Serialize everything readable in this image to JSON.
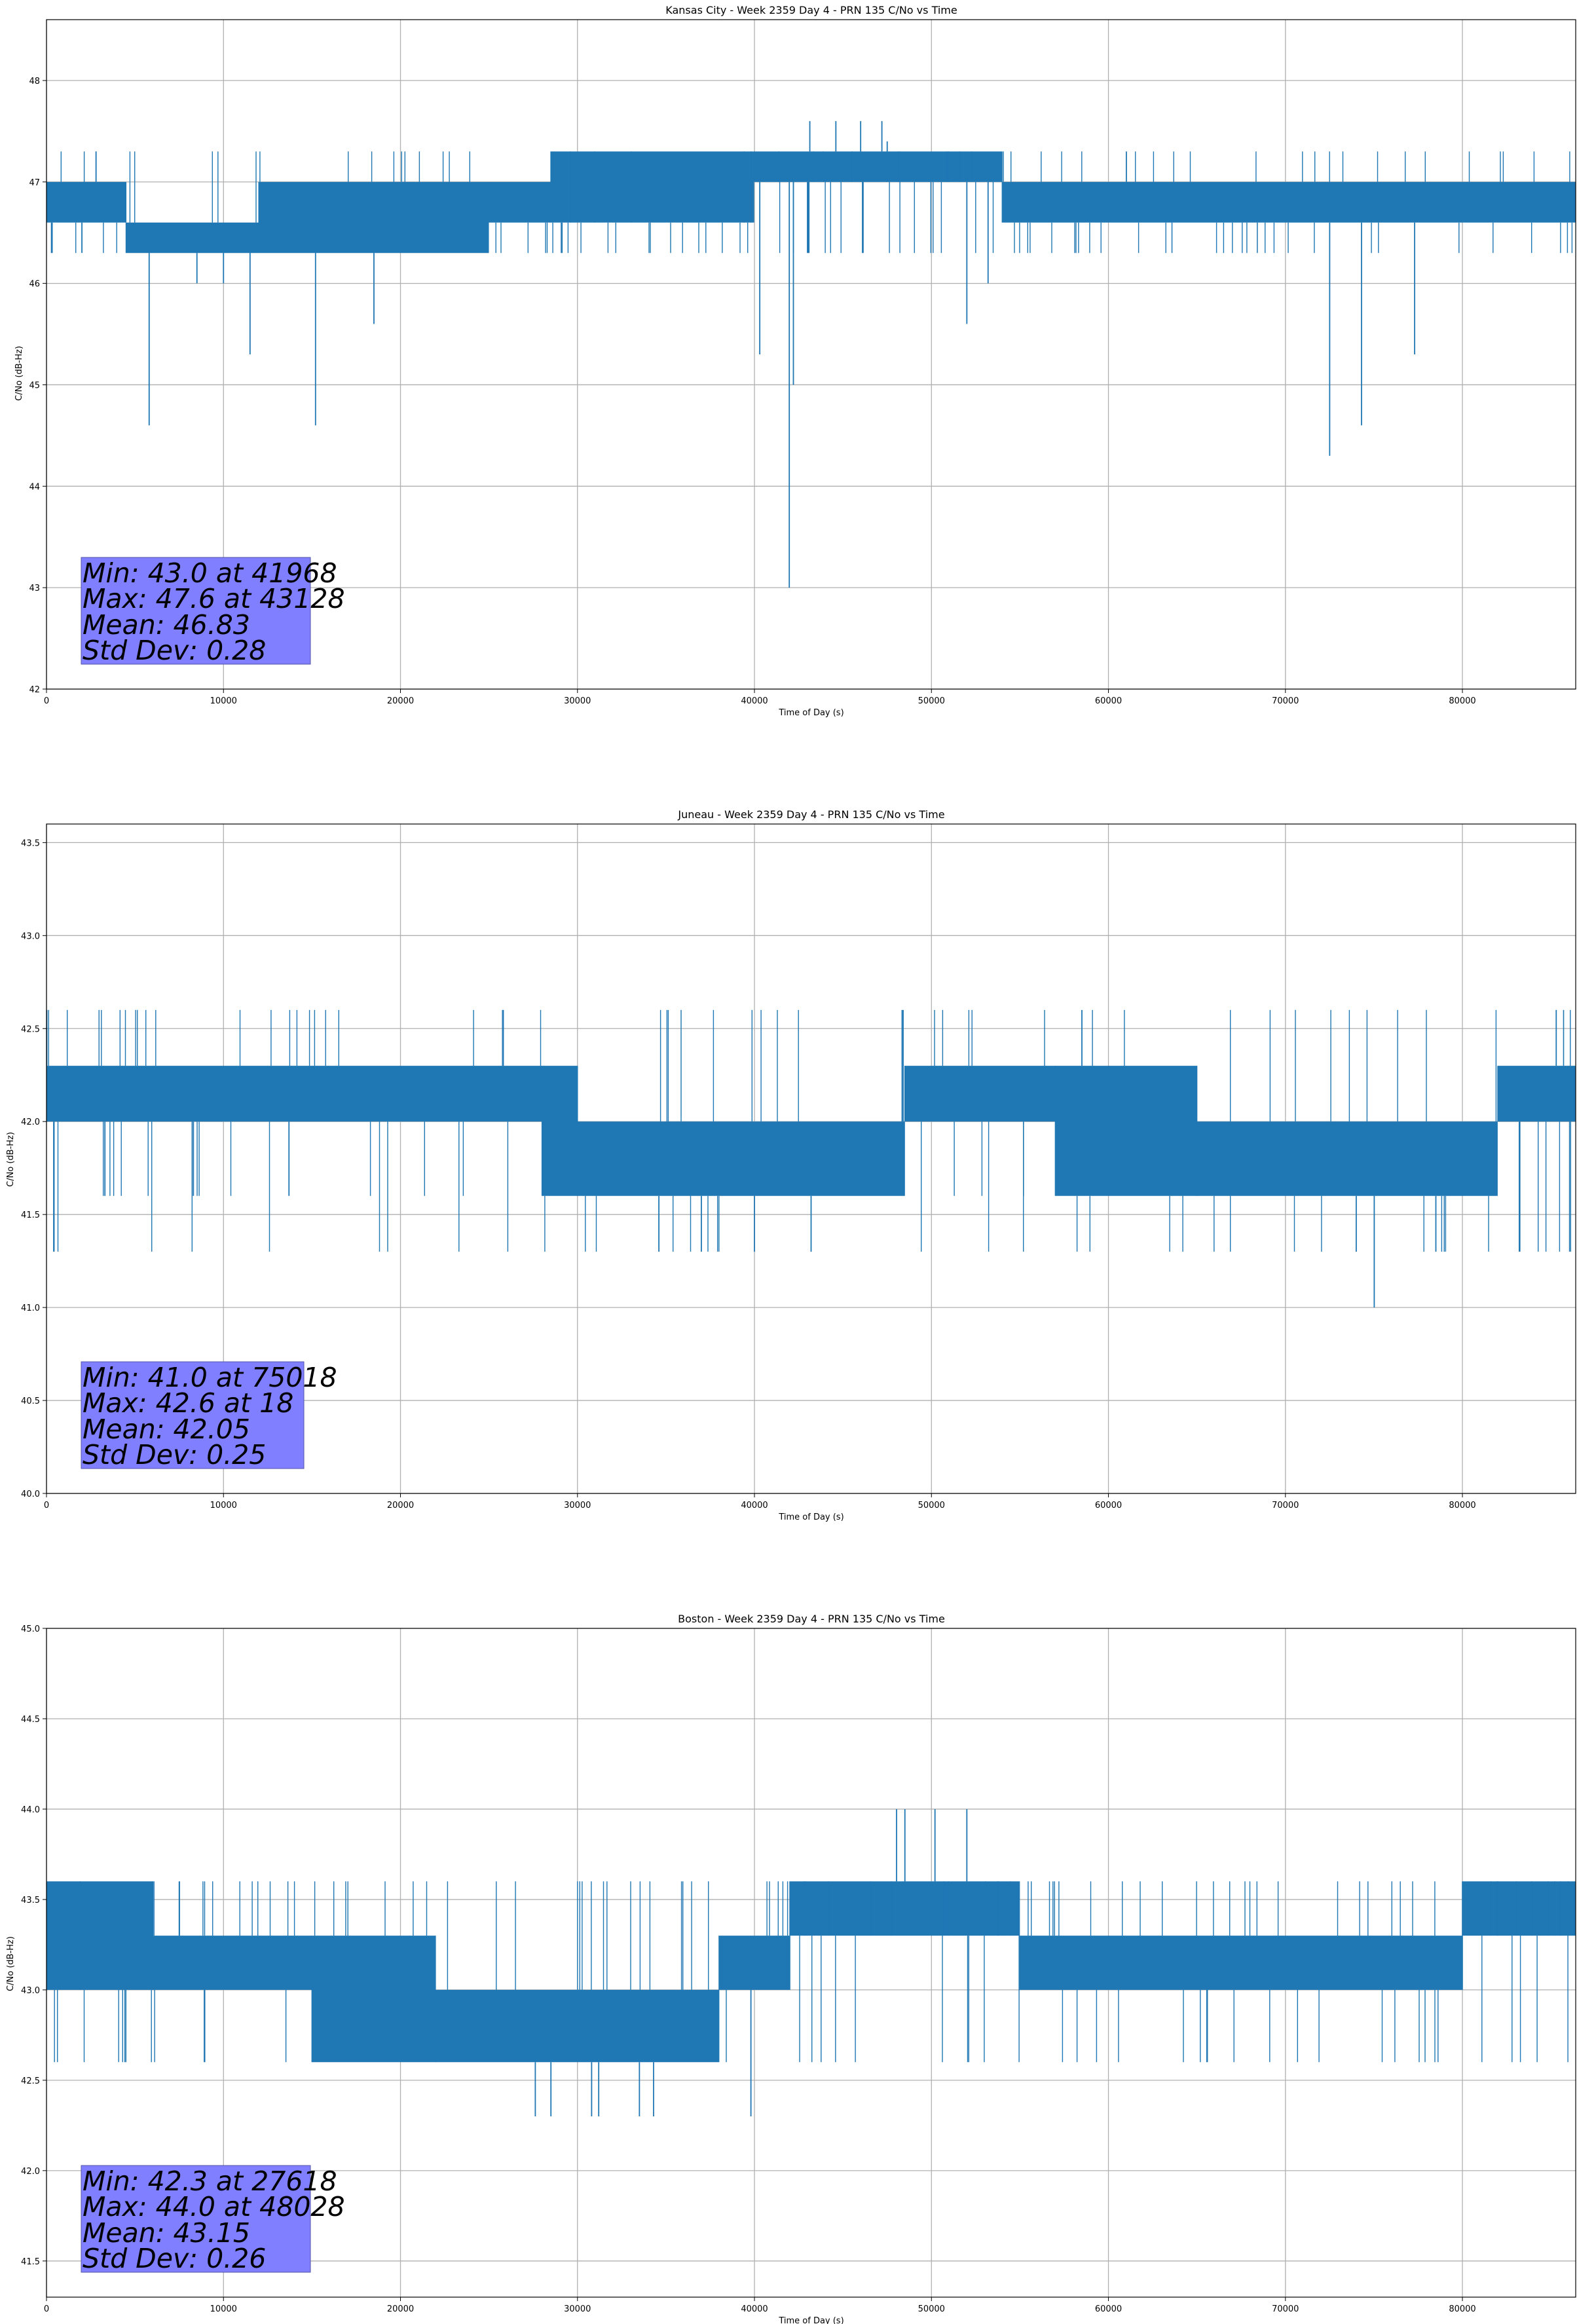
{
  "colors": {
    "line": "#1f77b4",
    "grid": "#b0b0b0",
    "stats_box_fill": "#7f7fff",
    "stats_box_border": "#5555aa",
    "axis": "#000000"
  },
  "chart_data": [
    {
      "type": "line",
      "title": "Kansas City - Week 2359 Day 4 - PRN 135 C/No vs Time",
      "xlabel": "Time of Day (s)",
      "ylabel": "C/No (dB-Hz)",
      "xlim": [
        0,
        86400
      ],
      "ylim": [
        42,
        48.6
      ],
      "xticks": [
        0,
        10000,
        20000,
        30000,
        40000,
        50000,
        60000,
        70000,
        80000
      ],
      "yticks": [
        42,
        43,
        44,
        45,
        46,
        47,
        48
      ],
      "grid": true,
      "stats": {
        "line1": "Min: 43.0 at 41968",
        "line2": "Max: 47.6 at 43128",
        "line3": "Mean: 46.83",
        "line4": "Std Dev: 0.28"
      },
      "segments": [
        {
          "x": [
            0,
            4500
          ],
          "y": [
            46.6,
            47.0
          ]
        },
        {
          "x": [
            4500,
            12000
          ],
          "y": [
            46.3,
            46.6
          ]
        },
        {
          "x": [
            12000,
            25000
          ],
          "y": [
            46.3,
            47.0
          ]
        },
        {
          "x": [
            25000,
            28500
          ],
          "y": [
            46.6,
            47.0
          ]
        },
        {
          "x": [
            28500,
            40000
          ],
          "y": [
            46.6,
            47.3
          ]
        },
        {
          "x": [
            40000,
            54000
          ],
          "y": [
            47.0,
            47.3
          ]
        },
        {
          "x": [
            54000,
            86400
          ],
          "y": [
            46.6,
            47.0
          ]
        }
      ],
      "flicker_levels": [
        46.3,
        47.3
      ],
      "spikes": [
        {
          "x": 2000,
          "y": 46.3
        },
        {
          "x": 2800,
          "y": 47.3
        },
        {
          "x": 5800,
          "y": 44.6
        },
        {
          "x": 8500,
          "y": 46.0
        },
        {
          "x": 10000,
          "y": 46.0
        },
        {
          "x": 11500,
          "y": 45.3
        },
        {
          "x": 15200,
          "y": 44.6
        },
        {
          "x": 18500,
          "y": 45.6
        },
        {
          "x": 40300,
          "y": 45.3
        },
        {
          "x": 41968,
          "y": 43.0
        },
        {
          "x": 42200,
          "y": 45.0
        },
        {
          "x": 43128,
          "y": 47.6
        },
        {
          "x": 44600,
          "y": 47.6
        },
        {
          "x": 46000,
          "y": 47.6
        },
        {
          "x": 47200,
          "y": 47.6
        },
        {
          "x": 47500,
          "y": 47.4
        },
        {
          "x": 52000,
          "y": 45.6
        },
        {
          "x": 53200,
          "y": 46.0
        },
        {
          "x": 72500,
          "y": 44.3
        },
        {
          "x": 74300,
          "y": 44.6
        },
        {
          "x": 77300,
          "y": 45.3
        }
      ]
    },
    {
      "type": "line",
      "title": "Juneau - Week 2359 Day 4 - PRN 135 C/No vs Time",
      "xlabel": "Time of Day (s)",
      "ylabel": "C/No (dB-Hz)",
      "xlim": [
        0,
        86400
      ],
      "ylim": [
        40.0,
        43.6
      ],
      "xticks": [
        0,
        10000,
        20000,
        30000,
        40000,
        50000,
        60000,
        70000,
        80000
      ],
      "yticks": [
        40.0,
        40.5,
        41.0,
        41.5,
        42.0,
        42.5,
        43.0,
        43.5
      ],
      "grid": true,
      "stats": {
        "line1": "Min: 41.0 at 75018",
        "line2": "Max: 42.6 at 18",
        "line3": "Mean: 42.05",
        "line4": "Std Dev: 0.25"
      },
      "segments": [
        {
          "x": [
            0,
            28000
          ],
          "y": [
            42.0,
            42.3
          ]
        },
        {
          "x": [
            28000,
            30000
          ],
          "y": [
            41.6,
            42.3
          ]
        },
        {
          "x": [
            30000,
            48500
          ],
          "y": [
            41.6,
            42.0
          ]
        },
        {
          "x": [
            48500,
            57000
          ],
          "y": [
            42.0,
            42.3
          ]
        },
        {
          "x": [
            57000,
            65000
          ],
          "y": [
            41.6,
            42.3
          ]
        },
        {
          "x": [
            65000,
            82000
          ],
          "y": [
            41.6,
            42.0
          ]
        },
        {
          "x": [
            82000,
            86400
          ],
          "y": [
            42.0,
            42.3
          ]
        }
      ],
      "flicker_levels": [
        42.6,
        41.6,
        41.3
      ],
      "spikes": [
        {
          "x": 18,
          "y": 42.6
        },
        {
          "x": 3300,
          "y": 41.6
        },
        {
          "x": 8300,
          "y": 41.6
        },
        {
          "x": 13700,
          "y": 41.6
        },
        {
          "x": 34600,
          "y": 41.3
        },
        {
          "x": 37000,
          "y": 41.3
        },
        {
          "x": 40000,
          "y": 41.3
        },
        {
          "x": 43200,
          "y": 41.3
        },
        {
          "x": 48400,
          "y": 42.6
        },
        {
          "x": 58500,
          "y": 42.6
        },
        {
          "x": 74000,
          "y": 41.3
        },
        {
          "x": 75018,
          "y": 41.0
        },
        {
          "x": 78500,
          "y": 41.3
        },
        {
          "x": 85300,
          "y": 42.6
        }
      ]
    },
    {
      "type": "line",
      "title": "Boston - Week 2359 Day 4 - PRN 135 C/No vs Time",
      "xlabel": "Time of Day (s)",
      "ylabel": "C/No (dB-Hz)",
      "xlim": [
        0,
        86400
      ],
      "ylim": [
        41.3,
        45.0
      ],
      "xticks": [
        0,
        10000,
        20000,
        30000,
        40000,
        50000,
        60000,
        70000,
        80000
      ],
      "yticks": [
        41.5,
        42.0,
        42.5,
        43.0,
        43.5,
        44.0,
        44.5,
        45.0
      ],
      "grid": true,
      "stats": {
        "line1": "Min: 42.3 at 27618",
        "line2": "Max: 44.0 at 48028",
        "line3": "Mean: 43.15",
        "line4": "Std Dev: 0.26"
      },
      "segments": [
        {
          "x": [
            0,
            6000
          ],
          "y": [
            43.0,
            43.6
          ]
        },
        {
          "x": [
            6000,
            15000
          ],
          "y": [
            43.0,
            43.3
          ]
        },
        {
          "x": [
            15000,
            22000
          ],
          "y": [
            42.6,
            43.3
          ]
        },
        {
          "x": [
            22000,
            38000
          ],
          "y": [
            42.6,
            43.0
          ]
        },
        {
          "x": [
            38000,
            42000
          ],
          "y": [
            43.0,
            43.3
          ]
        },
        {
          "x": [
            42000,
            55000
          ],
          "y": [
            43.3,
            43.6
          ]
        },
        {
          "x": [
            55000,
            80000
          ],
          "y": [
            43.0,
            43.3
          ]
        },
        {
          "x": [
            80000,
            86400
          ],
          "y": [
            43.3,
            43.6
          ]
        }
      ],
      "flicker_levels": [
        43.6,
        42.6
      ],
      "spikes": [
        {
          "x": 7500,
          "y": 43.6
        },
        {
          "x": 27618,
          "y": 42.3
        },
        {
          "x": 28500,
          "y": 42.3
        },
        {
          "x": 30800,
          "y": 42.3
        },
        {
          "x": 31200,
          "y": 42.3
        },
        {
          "x": 33500,
          "y": 42.3
        },
        {
          "x": 34300,
          "y": 42.3
        },
        {
          "x": 39800,
          "y": 42.3
        },
        {
          "x": 48028,
          "y": 44.0
        },
        {
          "x": 48500,
          "y": 44.0
        },
        {
          "x": 50200,
          "y": 44.0
        },
        {
          "x": 52000,
          "y": 44.0
        }
      ]
    }
  ]
}
